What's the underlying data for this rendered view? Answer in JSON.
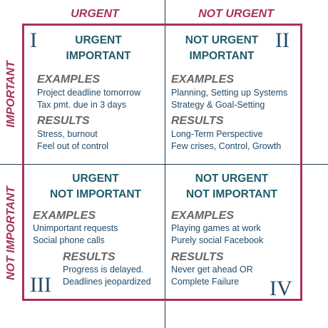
{
  "axes": {
    "column_left": "URGENT",
    "column_right": "NOT URGENT",
    "row_top": "IMPORTANT",
    "row_bottom": "NOT IMPORTANT"
  },
  "colors": {
    "accent": "#a8325e",
    "title": "#1f5c6e",
    "text": "#1f4a6b",
    "section": "#666666",
    "axis": "#1e3a52"
  },
  "quadrants": [
    {
      "roman": "I",
      "title": [
        "URGENT",
        "IMPORTANT"
      ],
      "examples_label": "EXAMPLES",
      "examples": [
        "Project deadline tomorrow",
        "Tax pmt. due in 3 days"
      ],
      "results_label": "RESULTS",
      "results": [
        "Stress, burnout",
        "Feel out of control"
      ]
    },
    {
      "roman": "II",
      "title": [
        "NOT URGENT",
        "IMPORTANT"
      ],
      "examples_label": "EXAMPLES",
      "examples": [
        "Planning, Setting up Systems",
        "Strategy & Goal-Setting"
      ],
      "results_label": "RESULTS",
      "results": [
        "Long-Term Perspective",
        "Few crises, Control, Growth"
      ]
    },
    {
      "roman": "III",
      "title": [
        "URGENT",
        "NOT IMPORTANT"
      ],
      "examples_label": "EXAMPLES",
      "examples": [
        "Unimportant requests",
        "Social phone calls"
      ],
      "results_label": "RESULTS",
      "results": [
        "Progress is delayed.",
        "Deadlines jeopardized"
      ]
    },
    {
      "roman": "IV",
      "title": [
        "NOT URGENT",
        "NOT IMPORTANT"
      ],
      "examples_label": "EXAMPLES",
      "examples": [
        "Playing games at work",
        "Purely social Facebook"
      ],
      "results_label": "RESULTS",
      "results": [
        "Never get ahead OR",
        "Complete Failure"
      ]
    }
  ]
}
